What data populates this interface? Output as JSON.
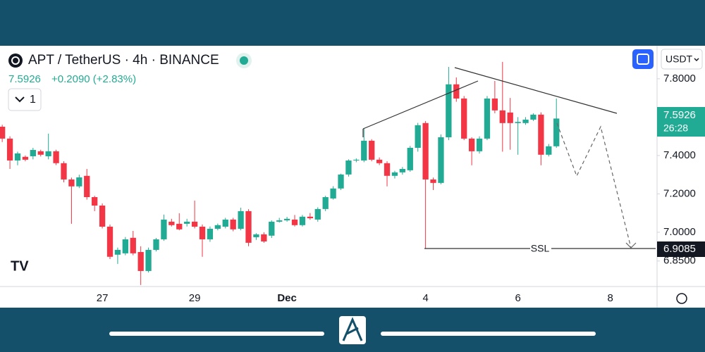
{
  "chart_data": {
    "type": "candlestick",
    "title": "APT / TetherUS · 4h · BINANCE",
    "subtitle": "+0.2090 (+2.83%)",
    "last_value": "7.5926",
    "interval_count": "1",
    "currency": "USDT",
    "price_label": "7.5926",
    "countdown": "26:28",
    "annotation": "SSL",
    "annotation_price": "6.9085",
    "up_color": "#22ab94",
    "down_color": "#f23645",
    "grid": false,
    "categories": [
      null,
      null,
      null,
      null,
      null,
      null,
      null,
      null,
      null,
      null,
      null,
      null,
      null,
      "27",
      null,
      null,
      null,
      null,
      null,
      null,
      null,
      null,
      null,
      null,
      null,
      "29",
      null,
      null,
      null,
      null,
      null,
      null,
      null,
      null,
      null,
      null,
      null,
      "Dec",
      null,
      null,
      null,
      null,
      null,
      null,
      null,
      null,
      null,
      null,
      null,
      null,
      null,
      null,
      null,
      null,
      null,
      "4",
      null,
      null,
      null,
      null,
      null,
      null,
      null,
      null,
      null,
      null,
      null,
      "6",
      null,
      null,
      null,
      null,
      null,
      null,
      null,
      null,
      null,
      null,
      null,
      "8",
      null,
      null,
      null,
      null,
      null,
      null
    ],
    "open": [
      7.55,
      7.488,
      7.374,
      7.393,
      7.396,
      7.422,
      7.396,
      7.422,
      7.36,
      7.275,
      7.239,
      7.294,
      7.183,
      7.139,
      7.029,
      6.883,
      6.89,
      6.971,
      6.897,
      6.798,
      6.908,
      6.963,
      7.055,
      7.044,
      7.044,
      7.055,
      7.029,
      6.963,
      7.018,
      7.029,
      7.066,
      7.018,
      7.11,
      6.974,
      6.989,
      6.982,
      7.055,
      7.062,
      7.066,
      7.037,
      7.081,
      7.066,
      7.121,
      7.176,
      7.228,
      7.301,
      7.374,
      7.374,
      7.477,
      7.378,
      7.36,
      7.294,
      7.312,
      7.323,
      7.44,
      7.569,
      7.275,
      7.257,
      7.495,
      7.771,
      7.697,
      7.488,
      7.422,
      7.488,
      7.697,
      7.635,
      7.624,
      7.569,
      7.569,
      7.587,
      7.613,
      7.404,
      7.448,
      null,
      null,
      null,
      null,
      null,
      null,
      null,
      null,
      null,
      null,
      null,
      null,
      null
    ],
    "high": [
      7.56,
      7.5,
      7.42,
      7.4,
      7.44,
      7.43,
      7.514,
      7.43,
      7.37,
      7.285,
      7.3,
      7.33,
      7.19,
      7.15,
      7.04,
      6.92,
      6.975,
      7.007,
      6.927,
      6.92,
      6.97,
      7.092,
      7.07,
      7.099,
      7.07,
      7.165,
      7.04,
      7.03,
      7.045,
      7.075,
      7.075,
      7.128,
      7.12,
      6.995,
      7.0,
      7.062,
      7.075,
      7.08,
      7.09,
      7.09,
      7.1,
      7.13,
      7.19,
      7.24,
      7.305,
      7.38,
      7.385,
      7.543,
      7.485,
      7.39,
      7.37,
      7.32,
      7.34,
      7.45,
      7.57,
      7.58,
      7.285,
      7.51,
      7.862,
      7.807,
      7.71,
      7.495,
      7.5,
      7.71,
      7.789,
      7.888,
      7.7,
      7.6,
      7.6,
      7.62,
      7.625,
      7.46,
      7.697,
      null,
      null,
      null,
      null,
      null,
      null,
      null,
      null,
      null,
      null,
      null,
      null,
      null
    ],
    "low": [
      7.47,
      7.33,
      7.349,
      7.37,
      7.38,
      7.395,
      7.38,
      7.35,
      7.26,
      7.044,
      7.23,
      7.17,
      7.11,
      7.02,
      6.86,
      6.835,
      6.88,
      6.88,
      6.725,
      6.79,
      6.9,
      6.955,
      7.03,
      7.01,
      7.03,
      7.02,
      6.872,
      6.95,
      7.01,
      7.02,
      7.005,
      7.01,
      6.927,
      6.96,
      6.945,
      6.97,
      7.05,
      7.055,
      7.03,
      7.03,
      7.065,
      7.055,
      7.11,
      7.17,
      7.22,
      7.29,
      7.365,
      7.365,
      7.37,
      7.35,
      7.239,
      7.28,
      7.3,
      7.315,
      7.42,
      6.916,
      7.22,
      7.25,
      7.48,
      7.68,
      7.48,
      7.349,
      7.41,
      7.48,
      7.62,
      7.42,
      7.43,
      7.404,
      7.56,
      7.58,
      7.349,
      7.395,
      7.44,
      null,
      null,
      null,
      null,
      null,
      null,
      null,
      null,
      null,
      null,
      null,
      null,
      null
    ],
    "close": [
      7.488,
      7.374,
      7.411,
      7.378,
      7.429,
      7.404,
      7.422,
      7.36,
      7.275,
      7.239,
      7.286,
      7.183,
      7.139,
      7.029,
      6.872,
      6.908,
      6.963,
      6.89,
      6.798,
      6.908,
      6.963,
      7.066,
      7.037,
      7.015,
      7.055,
      7.029,
      6.963,
      7.018,
      7.037,
      7.066,
      7.015,
      7.11,
      6.945,
      6.989,
      6.952,
      7.055,
      7.062,
      7.07,
      7.037,
      7.081,
      7.073,
      7.121,
      7.183,
      7.228,
      7.301,
      7.374,
      7.378,
      7.477,
      7.378,
      7.36,
      7.294,
      7.312,
      7.33,
      7.44,
      7.558,
      7.275,
      7.257,
      7.495,
      7.771,
      7.697,
      7.488,
      7.422,
      7.488,
      7.697,
      7.635,
      7.569,
      7.569,
      7.575,
      7.587,
      7.613,
      7.404,
      7.448,
      7.5926,
      null,
      null,
      null,
      null,
      null,
      null,
      null,
      null,
      null,
      null,
      null,
      null,
      null
    ],
    "ylim": [
      6.717,
      7.972
    ],
    "yticks": [
      {
        "value": 7.8,
        "label": "7.8000"
      },
      {
        "value": 7.4,
        "label": "7.4000"
      },
      {
        "value": 7.2,
        "label": "7.2000"
      },
      {
        "value": 7.0,
        "label": "7.0000"
      },
      {
        "value": 6.85,
        "label": "6.8500"
      }
    ]
  }
}
